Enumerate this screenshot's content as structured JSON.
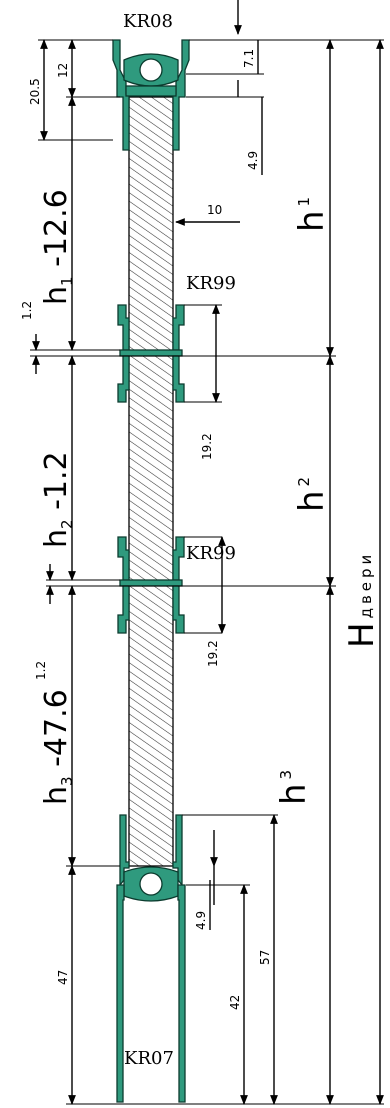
{
  "profiles": {
    "top": "KR08",
    "middle_1": "KR99",
    "middle_2": "KR99",
    "bottom": "KR07"
  },
  "dimensions": {
    "top_7_1": "7.1",
    "top_12": "12",
    "top_20_5": "20.5",
    "top_4_9": "4.9",
    "panel_10": "10",
    "gap_1_2_a": "1.2",
    "gap_1_2_b": "1.2",
    "mid_19_2_a": "19.2",
    "mid_19_2_b": "19.2",
    "bot_4_9": "4.9",
    "bot_42": "42",
    "bot_57": "57",
    "bot_47": "47"
  },
  "formulas": {
    "h1_base": "h",
    "h1_sub": "1",
    "h1_rest": " -12.6",
    "h2_base": "h",
    "h2_sub": "2",
    "h2_rest": " -1.2",
    "h3_base": "h",
    "h3_sub": "3",
    "h3_rest": " -47.6"
  },
  "heights": {
    "h1_base": "h",
    "h1_sub": "1",
    "h2_base": "h",
    "h2_sub": "2",
    "h3_base": "h",
    "h3_sub": "3",
    "H_base": "H",
    "H_sub": "двери"
  },
  "colors": {
    "profile_fill": "#2f9a7e",
    "profile_stroke": "#0b3b2e",
    "hatch": "#333333"
  }
}
